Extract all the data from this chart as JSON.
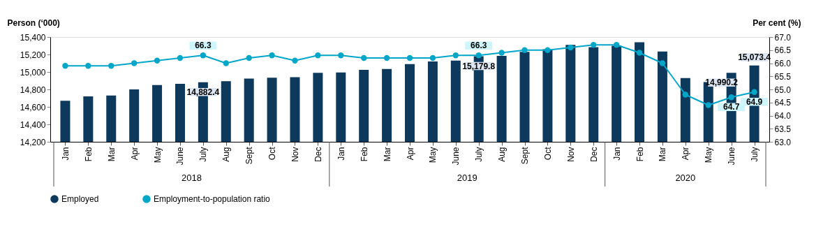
{
  "chart_data": {
    "type": "bar",
    "categories": [
      "Jan",
      "Feb",
      "Mar",
      "Apr",
      "May",
      "June",
      "July",
      "Aug",
      "Sept",
      "Oct",
      "Nov",
      "Dec",
      "Jan",
      "Feb",
      "Mar",
      "Apr",
      "May",
      "June",
      "July",
      "Aug",
      "Sept",
      "Oct",
      "Nov",
      "Dec",
      "Jan",
      "Feb",
      "Mar",
      "Apr",
      "May",
      "June",
      "July"
    ],
    "annotations": [
      "2018",
      "2019",
      "2020"
    ],
    "ylabel": "Person (‘000)",
    "y2label": "Per cent (%)",
    "ylim": [
      14200,
      15400
    ],
    "yticks": [
      {
        "value": 14200,
        "label": "14,200"
      },
      {
        "value": 14400,
        "label": "14,400"
      },
      {
        "value": 14600,
        "label": "14,600"
      },
      {
        "value": 14800,
        "label": "14,800"
      },
      {
        "value": 15000,
        "label": "15,000"
      },
      {
        "value": 15200,
        "label": "15,200"
      },
      {
        "value": 15400,
        "label": "15,400"
      }
    ],
    "y2lim": [
      63.0,
      67.0
    ],
    "y2ticks": [
      {
        "value": 63,
        "label": "63.0"
      },
      63.5,
      {
        "value": 64,
        "label": "64.0"
      },
      64.5,
      {
        "value": 65,
        "label": "65.0"
      },
      65.5,
      {
        "value": 66,
        "label": "66.0"
      },
      66.5,
      {
        "value": 67,
        "label": "67.0"
      }
    ],
    "legend": "bottom",
    "grid": false,
    "marker": "circle",
    "line_style": "solid",
    "series": [
      {
        "name": "Employed",
        "color": "#0d3a5c",
        "values": [
          14670,
          14720,
          14730,
          14800,
          14850,
          14865,
          14882.4,
          14895,
          14925,
          14935,
          14940,
          14990,
          14995,
          15025,
          15035,
          15090,
          15120,
          15130,
          15179.8,
          15185,
          15230,
          15260,
          15310,
          15285,
          15300,
          15340,
          15235,
          14930,
          14885,
          14990.2,
          15073.4
        ],
        "value_labels": [
          null,
          null,
          null,
          null,
          null,
          null,
          "14,882.4",
          null,
          null,
          null,
          null,
          null,
          null,
          null,
          null,
          null,
          null,
          null,
          "15,179.8",
          null,
          null,
          null,
          null,
          null,
          null,
          null,
          null,
          null,
          null,
          "14,990.2",
          "15,073.4"
        ]
      },
      {
        "name": "Employment-to-population ratio",
        "type": "line",
        "axis": "y2",
        "color": "#00a6c8",
        "values": [
          65.9,
          65.9,
          65.9,
          66.0,
          66.1,
          66.2,
          66.3,
          66.0,
          66.2,
          66.3,
          66.1,
          66.3,
          66.3,
          66.2,
          66.2,
          66.2,
          66.2,
          66.3,
          66.3,
          66.4,
          66.5,
          66.5,
          66.6,
          66.7,
          66.7,
          66.4,
          66.0,
          64.8,
          64.4,
          64.7,
          64.9
        ],
        "value_labels": [
          null,
          null,
          null,
          null,
          null,
          null,
          "66.3",
          null,
          null,
          null,
          null,
          null,
          null,
          null,
          null,
          null,
          null,
          null,
          "66.3",
          null,
          null,
          null,
          null,
          null,
          null,
          null,
          null,
          null,
          null,
          "64.7",
          "64.9"
        ]
      }
    ]
  }
}
